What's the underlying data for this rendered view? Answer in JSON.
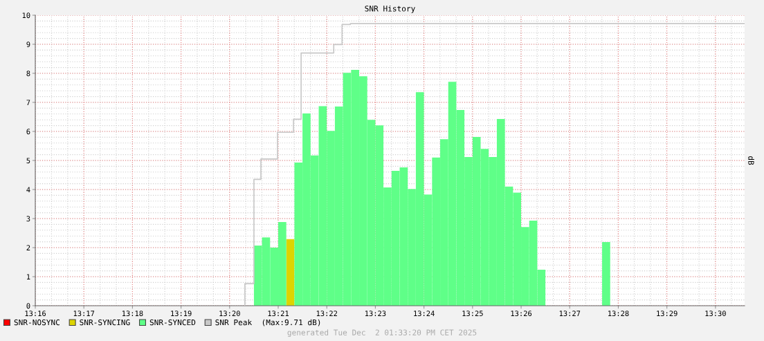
{
  "chart_data": {
    "type": "bar",
    "title": "SNR History",
    "ylabel": "dB",
    "x": [
      13.34167,
      13.34444,
      13.34722,
      13.35,
      13.35278,
      13.35556,
      13.35833,
      13.36111,
      13.36389,
      13.36667,
      13.36944,
      13.37222,
      13.375,
      13.37778,
      13.38056,
      13.38333,
      13.38611,
      13.38889,
      13.39167,
      13.39444,
      13.39722,
      13.4,
      13.40278,
      13.40556,
      13.40833,
      13.41111,
      13.41389,
      13.41667,
      13.41944,
      13.42222,
      13.425,
      13.42778,
      13.43056,
      13.43333,
      13.43611,
      13.43889,
      13.44167,
      13.44444,
      13.44722,
      13.45,
      13.45278,
      13.45556,
      13.45833,
      13.46111
    ],
    "series": [
      {
        "name": "SNR-NOSYNC",
        "color": "#ff0000",
        "values": [
          null,
          null,
          null,
          null,
          null,
          null,
          null,
          null,
          null,
          null,
          null,
          null,
          null,
          null,
          null,
          null,
          null,
          null,
          null,
          null,
          null,
          null,
          null,
          null,
          null,
          null,
          null,
          null,
          null,
          null,
          null,
          null,
          null,
          null,
          null,
          null,
          null,
          null,
          null,
          null,
          null,
          null,
          null,
          null
        ]
      },
      {
        "name": "SNR-SYNCING",
        "color": "#ddd400",
        "values": [
          null,
          null,
          null,
          null,
          2.29,
          null,
          null,
          null,
          null,
          null,
          null,
          null,
          null,
          null,
          null,
          null,
          null,
          null,
          null,
          null,
          null,
          null,
          null,
          null,
          null,
          null,
          null,
          null,
          null,
          null,
          null,
          null,
          null,
          null,
          null,
          null,
          null,
          null,
          null,
          null,
          null,
          null,
          null,
          null
        ]
      },
      {
        "name": "SNR-SYNCED",
        "color": "#5fff88",
        "values": [
          2.07,
          2.35,
          2.0,
          2.88,
          null,
          4.93,
          6.62,
          5.17,
          6.87,
          6.02,
          6.86,
          8.02,
          8.12,
          7.9,
          6.4,
          6.21,
          4.07,
          4.64,
          4.76,
          4.02,
          7.35,
          3.83,
          5.1,
          5.73,
          7.71,
          6.74,
          5.12,
          5.81,
          5.4,
          5.12,
          6.43,
          4.1,
          3.89,
          2.71,
          2.93,
          1.24,
          null,
          null,
          null,
          null,
          null,
          null,
          null,
          2.19
        ]
      },
      {
        "name": "SNR Peak  (Max:9.71 dB)",
        "type": "step",
        "color": "#c8c8c8",
        "x": [
          13.33857,
          13.33857,
          13.34167,
          13.34405,
          13.34976,
          13.35524,
          13.35786,
          13.36905,
          13.3719,
          13.37476,
          13.51
        ],
        "values": [
          0,
          0.76,
          4.35,
          5.05,
          5.97,
          6.42,
          8.7,
          8.99,
          9.68,
          9.71,
          9.71
        ]
      }
    ],
    "xlim": [
      13.26667,
      13.51
    ],
    "xticks": [
      {
        "value": 13.26667,
        "label": "13:16"
      },
      {
        "value": 13.28333,
        "label": "13:17"
      },
      {
        "value": 13.3,
        "label": "13:18"
      },
      {
        "value": 13.31667,
        "label": "13:19"
      },
      {
        "value": 13.33333,
        "label": "13:20"
      },
      {
        "value": 13.35,
        "label": "13:21"
      },
      {
        "value": 13.36667,
        "label": "13:22"
      },
      {
        "value": 13.38333,
        "label": "13:23"
      },
      {
        "value": 13.4,
        "label": "13:24"
      },
      {
        "value": 13.41667,
        "label": "13:25"
      },
      {
        "value": 13.43333,
        "label": "13:26"
      },
      {
        "value": 13.45,
        "label": "13:27"
      },
      {
        "value": 13.46667,
        "label": "13:28"
      },
      {
        "value": 13.48333,
        "label": "13:29"
      },
      {
        "value": 13.5,
        "label": "13:30"
      }
    ],
    "ylim": [
      0,
      10
    ],
    "yticks": [
      0,
      1,
      2,
      3,
      4,
      5,
      6,
      7,
      8,
      9,
      10
    ],
    "grid": true,
    "legend": "bottom",
    "annotations": [
      "generated Tue Dec  2 01:33:20 PM CET 2025"
    ]
  }
}
